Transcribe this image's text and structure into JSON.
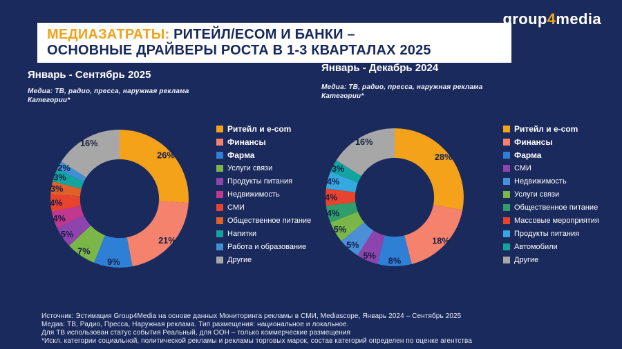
{
  "page": {
    "background": "#1B2A5C"
  },
  "logo": {
    "part1": "group",
    "accent": "4",
    "part2": "media",
    "accent_color": "#F0A21C"
  },
  "title": {
    "accent": "МЕДИАЗАТРАТЫ:",
    "line1_rest": "  РИТЕЙЛ/ECOM И БАНКИ –",
    "line2": "ОСНОВНЫЕ  ДРАЙВЕРЫ  РОСТА  В  1-3 КВАРТАЛАХ 2025",
    "accent_color": "#F0A21C",
    "text_color": "#16275B"
  },
  "chart_data": [
    {
      "type": "pie",
      "donut": true,
      "title": "Январь - Сентябрь 2025",
      "subtitle_lines": [
        "Медиа: ТВ, радио, пресса, наружная реклама",
        "Категории*"
      ],
      "categories": [
        "Ритейл и e-com",
        "Финансы",
        "Фарма",
        "Услуги связи",
        "Продукты питания",
        "Недвижимость",
        "СМИ",
        "Общественное питание",
        "Напитки",
        "Работа и образование",
        "Другие"
      ],
      "values": [
        26,
        21,
        9,
        7,
        5,
        4,
        4,
        3,
        3,
        2,
        16
      ],
      "labels": [
        "26%",
        "21%",
        "9%",
        "7%",
        "5%",
        "4%",
        "4%",
        "3%",
        "3%",
        "2%",
        "16%"
      ],
      "colors": [
        "#F5A21B",
        "#F4826C",
        "#2E7FD6",
        "#7AB648",
        "#8E44AD",
        "#C0398F",
        "#E8432E",
        "#E0622A",
        "#12A5A0",
        "#3F8FD2",
        "#A7A7A7"
      ],
      "start_angle": "top",
      "direction": "clockwise",
      "legend_position": "right"
    },
    {
      "type": "pie",
      "donut": true,
      "title": "Январь - Декабрь 2024",
      "subtitle_lines": [
        "Медиа: ТВ, радио, пресса, наружная реклама",
        "Категории*"
      ],
      "categories": [
        "Ритейл и e-com",
        "Финансы",
        "Фарма",
        "СМИ",
        "Недвижимость",
        "Услуги связи",
        "Общественное питание",
        "Массовые мероприятия",
        "Продукты питания",
        "Автомобили",
        "Другие"
      ],
      "values": [
        28,
        18,
        8,
        5,
        5,
        5,
        4,
        4,
        4,
        3,
        16
      ],
      "labels": [
        "28%",
        "18%",
        "8%",
        "5%",
        "5%",
        "5%",
        "4%",
        "4%",
        "4%",
        "3%",
        "16%"
      ],
      "colors": [
        "#F5A21B",
        "#F4826C",
        "#2E7FD6",
        "#8E44AD",
        "#4A90D9",
        "#7AB648",
        "#2E9E6B",
        "#E8432E",
        "#35A8E0",
        "#12A5A0",
        "#A7A7A7"
      ],
      "start_angle": "top",
      "direction": "clockwise",
      "legend_position": "right"
    }
  ],
  "footer": {
    "lines": [
      "Источник: Эстимация Group4Media на основе данных Мониторинга рекламы в СМИ, Mediascope, Январь 2024 – Сентябрь 2025",
      "Медиа: ТВ, Радио, Пресса, Наружная реклама. Тип размещения: национальное и локальное.",
      "Для ТВ использован статус события Реальный, для ООН – только коммерческие размещения",
      "*Искл. категории социальной, политической рекламы и рекламы торговых марок, состав категорий определен по оценке агентства"
    ]
  }
}
